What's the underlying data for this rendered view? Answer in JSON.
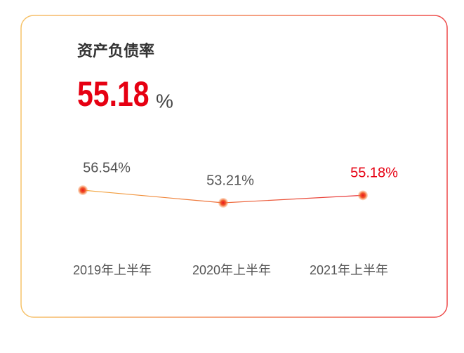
{
  "chart_data": {
    "type": "line",
    "title": "资产负债率",
    "highlight": 55.18,
    "highlight_unit": "%",
    "categories": [
      "2019年上半年",
      "2020年上半年",
      "2021年上半年"
    ],
    "values": [
      56.54,
      53.21,
      55.18
    ],
    "value_labels": [
      "56.54%",
      "53.21%",
      "55.18%"
    ],
    "value_label_colors": [
      "#555555",
      "#555555",
      "#e60012"
    ],
    "color": "#e60012"
  }
}
